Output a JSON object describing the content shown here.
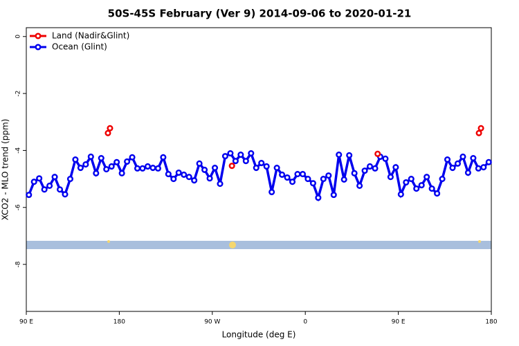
{
  "chart_data": {
    "type": "line",
    "title": "50S-45S February (Ver 9)   2014-09-06 to 2020-01-21",
    "x_label": "Longitude (deg E)",
    "y_label": "XCO2 - MLO trend (ppm)",
    "xlim": [
      90,
      540
    ],
    "xticks": [
      {
        "value": 90,
        "label": "90 E"
      },
      {
        "value": 180,
        "label": "180"
      },
      {
        "value": 270,
        "label": "90 W"
      },
      {
        "value": 360,
        "label": "0"
      },
      {
        "value": 450,
        "label": "90 E"
      },
      {
        "value": 540,
        "label": "180"
      }
    ],
    "ylim": [
      -9.65,
      0.31
    ],
    "yticks": [
      0,
      -2,
      -4,
      -6,
      -8
    ],
    "legend": "top-left",
    "series": [
      {
        "name": "Land (Nadir&Glint)",
        "color": "#ee0000",
        "x": [
          169,
          171,
          289,
          430,
          528,
          530
        ],
        "values": [
          -3.39,
          -3.22,
          -4.54,
          -4.12,
          -3.39,
          -3.22
        ]
      },
      {
        "name": "Ocean (Glint)",
        "color": "#0000ee",
        "x": [
          92.5,
          97.5,
          102.5,
          107.5,
          112.5,
          117.5,
          122.5,
          127.5,
          132.5,
          137.5,
          142.5,
          147.5,
          152.5,
          157.5,
          162.5,
          167.5,
          172.5,
          177.5,
          182.5,
          187.5,
          192.5,
          197.5,
          202.5,
          207.5,
          212.5,
          217.5,
          222.5,
          227.5,
          232.5,
          237.5,
          242.5,
          247.5,
          252.5,
          257.5,
          262.5,
          267.5,
          272.5,
          277.5,
          282.5,
          287.5,
          292.5,
          297.5,
          302.5,
          307.5,
          312.5,
          317.5,
          322.5,
          327.5,
          332.5,
          337.5,
          342.5,
          347.5,
          352.5,
          357.5,
          362.5,
          367.5,
          372.5,
          377.5,
          382.5,
          387.5,
          392.5,
          397.5,
          402.5,
          407.5,
          412.5,
          417.5,
          422.5,
          427.5,
          432.5,
          437.5,
          442.5,
          447.5,
          452.5,
          457.5,
          462.5,
          467.5,
          472.5,
          477.5,
          482.5,
          487.5,
          492.5,
          497.5,
          502.5,
          507.5,
          512.5,
          517.5,
          522.5,
          527.5,
          532.5,
          537.5
        ],
        "values": [
          -5.56,
          -5.1,
          -4.98,
          -5.37,
          -5.24,
          -4.93,
          -5.37,
          -5.54,
          -5.0,
          -4.32,
          -4.61,
          -4.49,
          -4.22,
          -4.8,
          -4.27,
          -4.66,
          -4.56,
          -4.41,
          -4.8,
          -4.39,
          -4.24,
          -4.63,
          -4.63,
          -4.56,
          -4.61,
          -4.63,
          -4.24,
          -4.83,
          -5.0,
          -4.78,
          -4.85,
          -4.93,
          -5.05,
          -4.46,
          -4.68,
          -4.98,
          -4.61,
          -5.17,
          -4.2,
          -4.1,
          -4.37,
          -4.15,
          -4.37,
          -4.1,
          -4.61,
          -4.44,
          -4.56,
          -5.46,
          -4.61,
          -4.85,
          -4.95,
          -5.1,
          -4.83,
          -4.83,
          -5.0,
          -5.15,
          -5.66,
          -5.0,
          -4.88,
          -5.56,
          -4.15,
          -5.02,
          -4.17,
          -4.8,
          -5.24,
          -4.71,
          -4.56,
          -4.63,
          -4.22,
          -4.29,
          -4.93,
          -4.59,
          -5.54,
          -5.12,
          -5.0,
          -5.34,
          -5.22,
          -4.93,
          -5.34,
          -5.51,
          -5.0,
          -4.32,
          -4.61,
          -4.46,
          -4.22,
          -4.78,
          -4.27,
          -4.63,
          -4.59,
          -4.41
        ]
      }
    ]
  }
}
